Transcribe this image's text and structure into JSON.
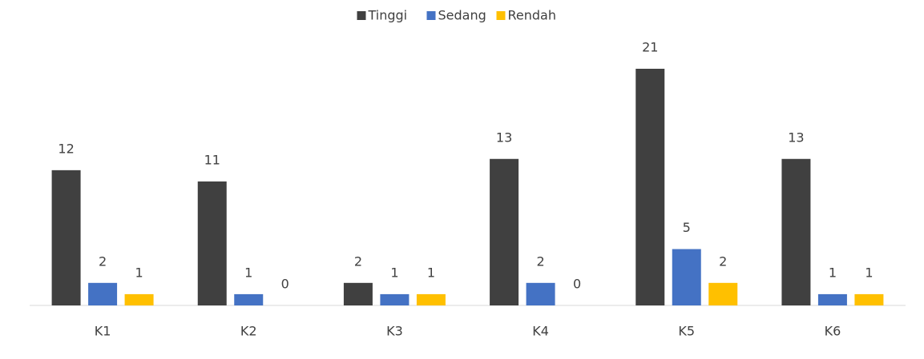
{
  "chart_data": {
    "type": "bar",
    "categories": [
      "K1",
      "K2",
      "K3",
      "K4",
      "K5",
      "K6"
    ],
    "series": [
      {
        "name": "Tinggi",
        "color": "#404040",
        "values": [
          12,
          11,
          2,
          13,
          21,
          13
        ]
      },
      {
        "name": "Sedang",
        "color": "#4472c4",
        "values": [
          2,
          1,
          1,
          2,
          5,
          1
        ]
      },
      {
        "name": "Rendah",
        "color": "#ffc000",
        "values": [
          1,
          0,
          1,
          0,
          2,
          1
        ]
      }
    ],
    "legend": "top"
  }
}
